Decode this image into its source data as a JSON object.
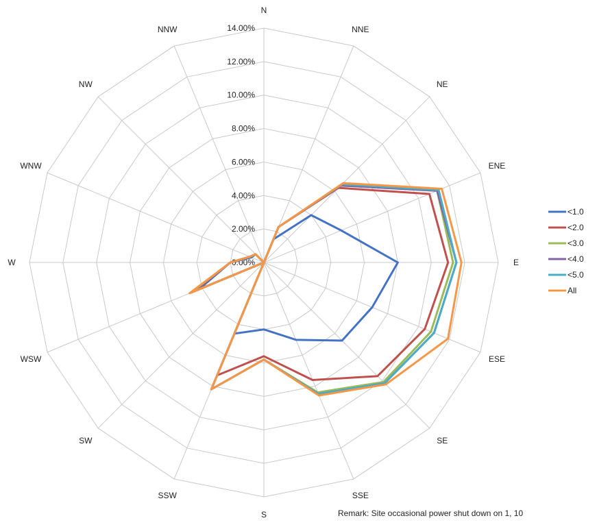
{
  "chart_data": {
    "type": "radar",
    "title": "",
    "directions": [
      "N",
      "NNE",
      "NE",
      "ENE",
      "E",
      "ESE",
      "SE",
      "SSE",
      "S",
      "SSW",
      "SW",
      "WSW",
      "W",
      "WNW",
      "NW",
      "NNW"
    ],
    "ticks": [
      "0.00%",
      "2.00%",
      "4.00%",
      "6.00%",
      "8.00%",
      "10.00%",
      "12.00%",
      "14.00%"
    ],
    "r_max": 14,
    "grid": true,
    "legend_position": "right",
    "series": [
      {
        "name": "<1.0",
        "color": "#4472C4",
        "values": [
          0.0,
          1.5,
          4.0,
          5.0,
          8.0,
          7.0,
          6.6,
          5.0,
          4.0,
          4.6,
          0.0,
          4.2,
          2.0,
          0.8,
          0.7,
          0.0
        ]
      },
      {
        "name": "<2.0",
        "color": "#C0504D",
        "values": [
          0.0,
          2.3,
          6.3,
          10.7,
          11.0,
          10.4,
          9.6,
          7.6,
          5.6,
          7.3,
          0.0,
          4.5,
          2.0,
          0.9,
          0.7,
          0.0
        ]
      },
      {
        "name": "<3.0",
        "color": "#9BBB59",
        "values": [
          0.0,
          2.3,
          6.5,
          11.2,
          11.3,
          10.8,
          10.1,
          8.4,
          5.8,
          8.2,
          0.0,
          4.7,
          2.0,
          0.9,
          0.7,
          0.0
        ]
      },
      {
        "name": "<4.0",
        "color": "#8064A2",
        "values": [
          0.0,
          2.3,
          6.5,
          11.2,
          11.5,
          11.0,
          10.2,
          8.5,
          5.8,
          8.2,
          0.0,
          4.7,
          2.0,
          0.9,
          0.7,
          0.0
        ]
      },
      {
        "name": "<5.0",
        "color": "#4BACC6",
        "values": [
          0.0,
          2.3,
          6.6,
          11.3,
          11.5,
          11.0,
          10.2,
          8.5,
          5.8,
          8.2,
          0.0,
          4.7,
          2.0,
          0.9,
          0.7,
          0.0
        ]
      },
      {
        "name": "All",
        "color": "#F79646",
        "values": [
          0.0,
          2.3,
          6.7,
          11.5,
          11.8,
          11.9,
          10.3,
          8.6,
          5.8,
          8.2,
          0.0,
          4.8,
          2.0,
          0.9,
          0.7,
          0.0
        ]
      }
    ]
  },
  "remark": "Remark: Site occasional power shut down on 1, 10"
}
